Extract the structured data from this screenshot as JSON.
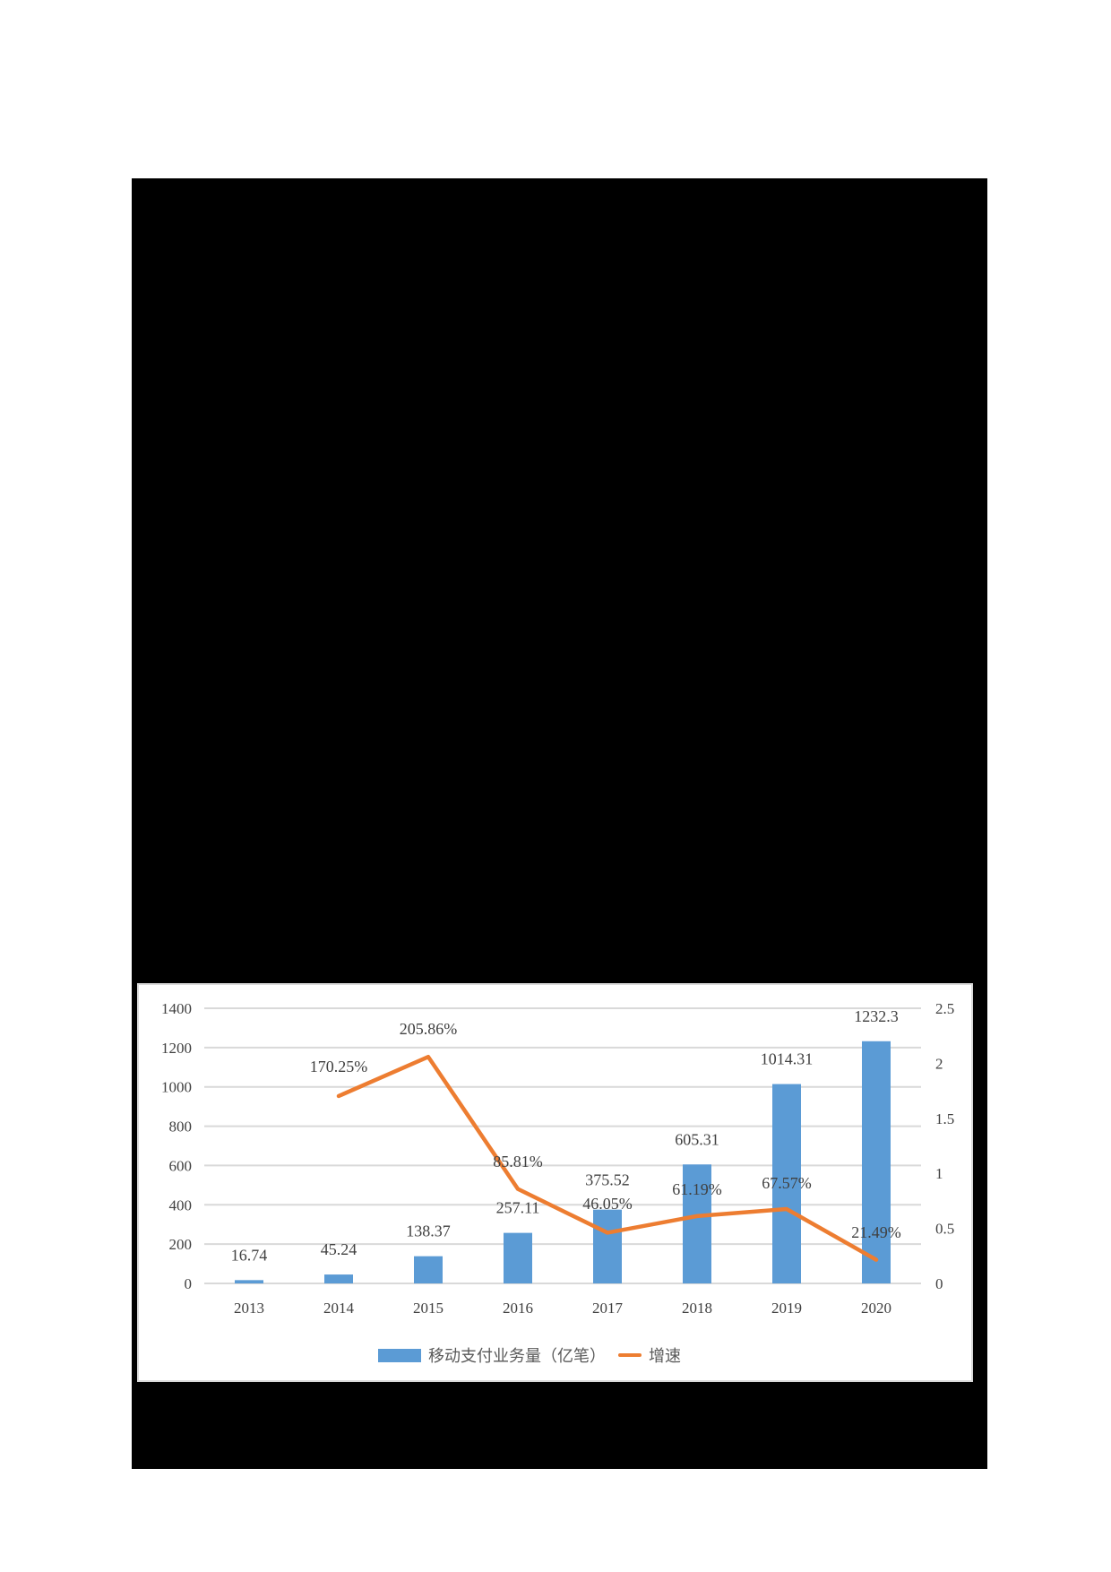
{
  "chart_data": {
    "type": "bar+line",
    "title": "",
    "categories": [
      "2013",
      "2014",
      "2015",
      "2016",
      "2017",
      "2018",
      "2019",
      "2020"
    ],
    "series": [
      {
        "name": "移动支付业务量（亿笔）",
        "type": "bar",
        "axis": "left",
        "color": "#5b9bd5",
        "values": [
          16.74,
          45.24,
          138.37,
          257.11,
          375.52,
          605.31,
          1014.31,
          1232.3
        ],
        "labels": [
          "16.74",
          "45.24",
          "138.37",
          "257.11",
          "375.52",
          "605.31",
          "1014.31",
          "1232.3"
        ]
      },
      {
        "name": "增速",
        "type": "line",
        "axis": "right",
        "color": "#ed7d31",
        "values": [
          null,
          1.7025,
          2.0586,
          0.8581,
          0.4605,
          0.6119,
          0.6757,
          0.2149
        ],
        "labels": [
          "",
          "170.25%",
          "205.86%",
          "85.81%",
          "46.05%",
          "61.19%",
          "67.57%",
          "21.49%"
        ]
      }
    ],
    "left_axis": {
      "ylim": [
        0,
        1400
      ],
      "ticks": [
        "0",
        "200",
        "400",
        "600",
        "800",
        "1000",
        "1200",
        "1400"
      ]
    },
    "right_axis": {
      "ylim": [
        0,
        2.5
      ],
      "ticks": [
        "0",
        "0.5",
        "1",
        "1.5",
        "2",
        "2.5"
      ]
    },
    "xlabel": "",
    "ylabel": "",
    "grid": true,
    "legend_position": "bottom"
  },
  "legend": {
    "bar_label": "移动支付业务量（亿笔）",
    "line_label": "增速"
  }
}
